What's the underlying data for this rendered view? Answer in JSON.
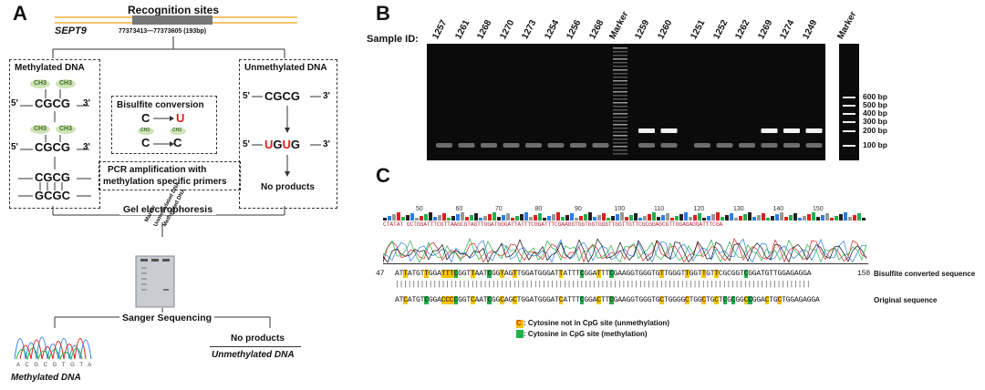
{
  "panelA": {
    "letter": "A",
    "recognition_title": "Recognition sites",
    "gene": "SEPT9",
    "coords": "77373413—77373605 (193bp)",
    "methylated_title": "Methylated DNA",
    "unmethylated_title": "Unmethylated DNA",
    "ch3": "CH3",
    "five": "5'",
    "three": "3'",
    "cgcg": "CGCG",
    "gcgc": "GCGC",
    "bisulfite_title": "Bisulfite conversion",
    "c": "C",
    "u": "U",
    "ch3_small": "CH3",
    "pcr_line1": "PCR amplification with",
    "pcr_line2": "methylation specific primers",
    "unmeth_product_prefix": "",
    "u1": "U",
    "g1": "G",
    "u2": "U",
    "g2": "G",
    "no_products": "No products",
    "gel_electrophoresis": "Gel electrophoresis",
    "gel_labels": [
      "Marker",
      "Unmethylated DNA",
      "Methylated DNA"
    ],
    "sanger": "Sanger Sequencing",
    "no_products2": "No products",
    "unmethylated_dna": "Unmethylated DNA",
    "methylated_dna": "Methylated DNA",
    "trace_bases": "A C G C G T G T A"
  },
  "panelB": {
    "letter": "B",
    "sample_id_label": "Sample ID:",
    "samples_left": [
      "1257",
      "1261",
      "1268",
      "1270",
      "1273",
      "1254",
      "1256",
      "1268"
    ],
    "marker": "Marker",
    "samples_right": [
      "1259",
      "1260",
      "1251",
      "1252",
      "1262",
      "1269",
      "1274",
      "1249"
    ],
    "marker2": "Marker",
    "ladder": [
      "600 bp",
      "500 bp",
      "400 bp",
      "300 bp",
      "200 bp",
      "100 bp"
    ],
    "bright_lanes": [
      false,
      false,
      false,
      false,
      false,
      false,
      false,
      false,
      true,
      true,
      false,
      false,
      false,
      true,
      true,
      true
    ]
  },
  "panelC": {
    "letter": "C",
    "ruler": [
      "50",
      "60",
      "70",
      "80",
      "90",
      "100",
      "110",
      "120",
      "130",
      "140",
      "150"
    ],
    "top_seq": "CTATAT GCTGGATTTCGTTAAGCGTAGTTGGATGGGATTATTTCGGATTTCGAAGGTGGTGGTGGGTTGGTTGTTCGCGGAGCGTTGGAGAGGATTTCGA",
    "seq_start": "47",
    "seq_end": "150",
    "bisulfite_seq": "ATTATGTTGGATTTCGGTTAATCGGTAGTTGGATGGGATTATTTCGGATTTCGAAGGTGGGTGTTGGGTTGGTTGTTCGCGGTCGGATGTTGGAGAGGA",
    "original_seq": "ATCATGTCGGACCCCGGTCAATCGGCAGCTGGATGGGATCATTTCGGACTTCGAAGGTGGGTGCTGGGGCTGGCTGCTCGCGGCCGGACTGCTGGAGAGGA",
    "bisulfite_label": "Bisulfite converted sequence",
    "original_label": "Original sequence",
    "legend_c": "C",
    "legend_unmeth": ": Cytosine not in CpG site (unmethylation)",
    "legend_meth": ": Cytosine in CpG site (methylation)",
    "colors": {
      "unmeth": "#f5c400",
      "meth": "#22b04a",
      "red": "#e0201c"
    }
  }
}
